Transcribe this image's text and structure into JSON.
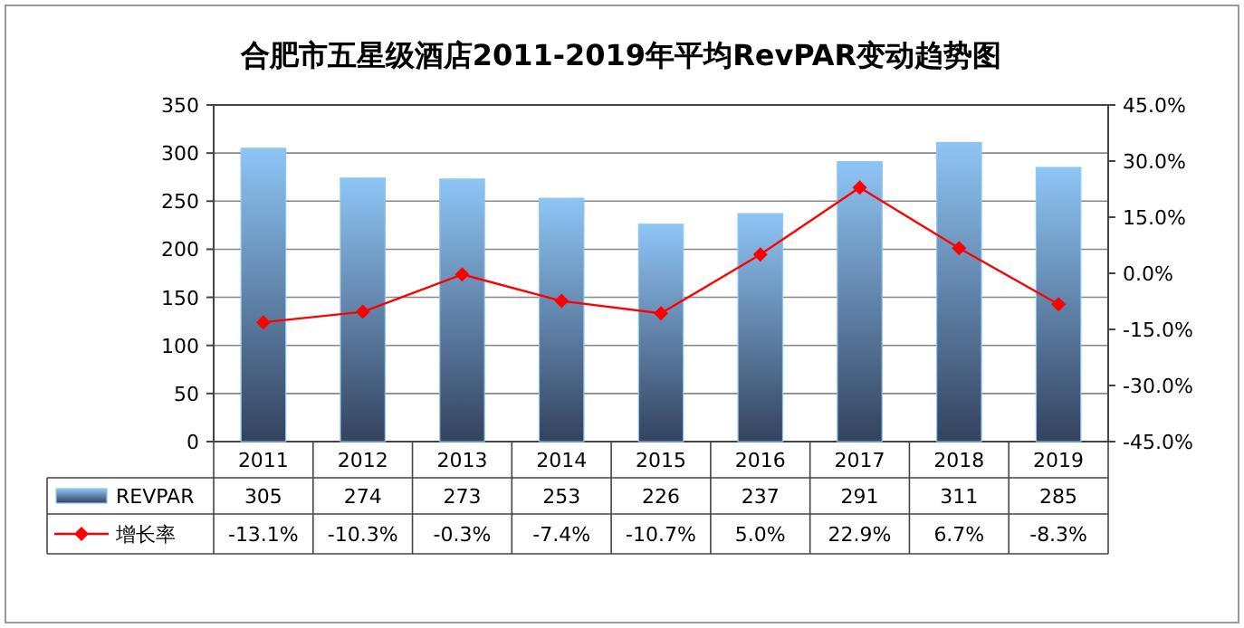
{
  "chart_data": {
    "type": "bar",
    "title": "合肥市五星级酒店2011-2019年平均RevPAR变动趋势图",
    "categories": [
      "2011",
      "2012",
      "2013",
      "2014",
      "2015",
      "2016",
      "2017",
      "2018",
      "2019"
    ],
    "series": [
      {
        "name": "REVPAR",
        "type": "bar",
        "color": "#8ec5f5",
        "values": [
          305,
          274,
          273,
          253,
          226,
          237,
          291,
          311,
          285
        ],
        "value_labels": [
          "305",
          "274",
          "273",
          "253",
          "226",
          "237",
          "291",
          "311",
          "285"
        ]
      },
      {
        "name": "增长率",
        "type": "line",
        "axis": "y2",
        "color": "#ff0000",
        "marker": "diamond",
        "values": [
          -13.1,
          -10.3,
          -0.3,
          -7.4,
          -10.7,
          5.0,
          22.9,
          6.7,
          -8.3
        ],
        "value_labels": [
          "-13.1%",
          "-10.3%",
          "-0.3%",
          "-7.4%",
          "-10.7%",
          "5.0%",
          "22.9%",
          "6.7%",
          "-8.3%"
        ]
      }
    ],
    "ylim": [
      0,
      350
    ],
    "yticks": [
      0,
      50,
      100,
      150,
      200,
      250,
      300,
      350
    ],
    "y2lim": [
      -45,
      45
    ],
    "y2ticks": [
      {
        "value": -45,
        "label": "-45.0%"
      },
      {
        "value": -30,
        "label": "-30.0%"
      },
      {
        "value": -15,
        "label": "-15.0%"
      },
      {
        "value": 0,
        "label": "0.0%"
      },
      {
        "value": 15,
        "label": "15.0%"
      },
      {
        "value": 30,
        "label": "30.0%"
      },
      {
        "value": 45,
        "label": "45.0%"
      }
    ],
    "grid": "y",
    "legend": "bottom"
  }
}
